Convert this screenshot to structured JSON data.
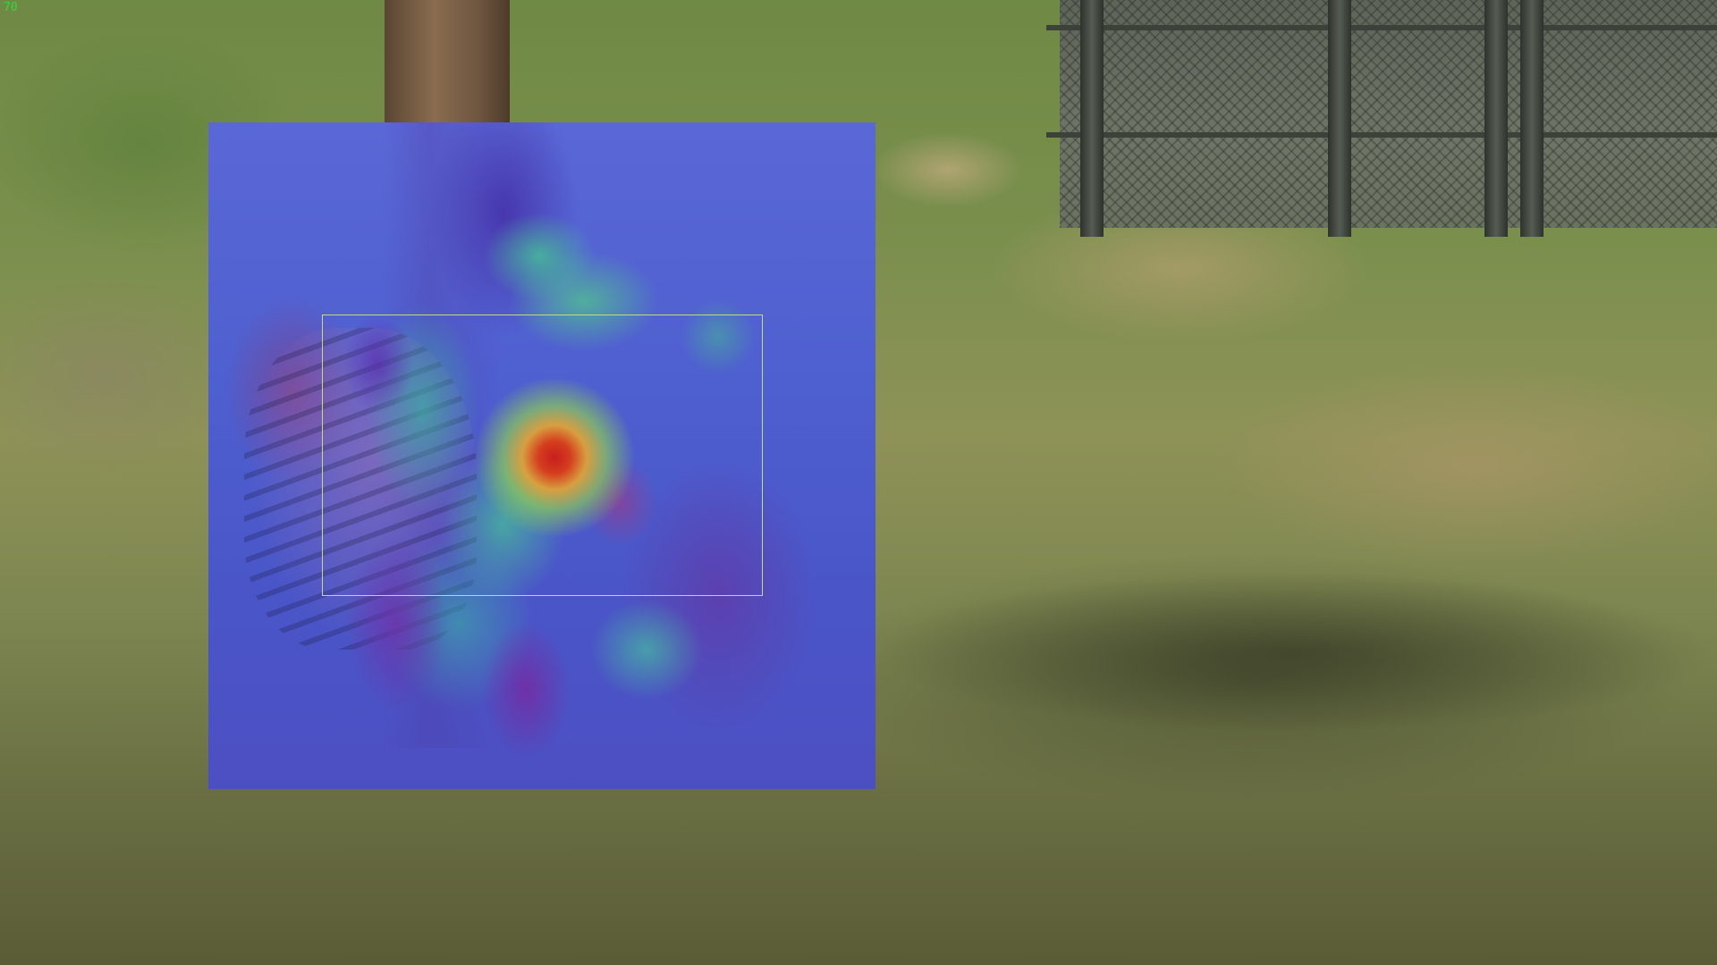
{
  "overlay": {
    "frame_counter": "70"
  },
  "colors": {
    "heatmap_low": "#4a55c8",
    "heatmap_mid": "#50c896",
    "heatmap_high": "#c81e1e",
    "bbox": "#c6dc78",
    "counter": "#3bd43b"
  }
}
